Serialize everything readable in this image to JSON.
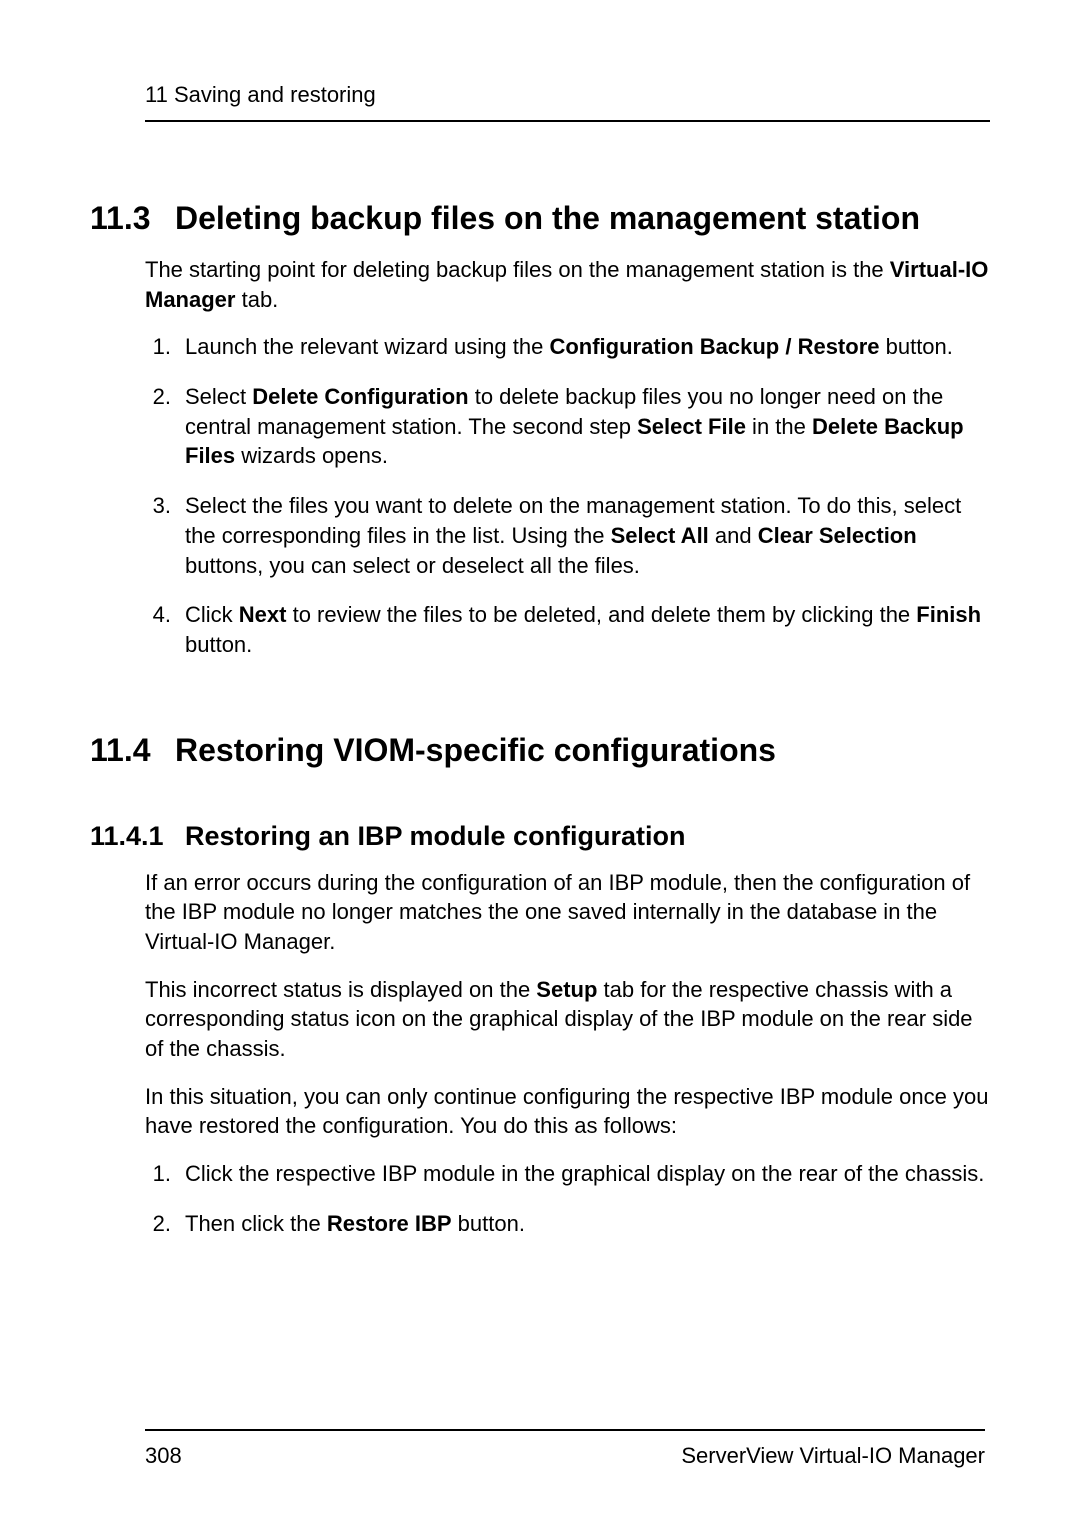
{
  "runningHead": "11 Saving and restoring",
  "section1": {
    "num": "11.3",
    "title": "Deleting backup files on the management station",
    "intro_pre": "The starting point for deleting backup files on the management station is the ",
    "intro_bold": "Virtual-IO Manager",
    "intro_post": " tab.",
    "steps": [
      {
        "n": "1.",
        "parts": [
          {
            "t": "Launch the relevant wizard using the "
          },
          {
            "t": "Configuration Backup / Restore",
            "b": true
          },
          {
            "t": " button."
          }
        ]
      },
      {
        "n": "2.",
        "parts": [
          {
            "t": "Select "
          },
          {
            "t": "Delete Configuration",
            "b": true
          },
          {
            "t": " to delete backup files you no longer need on the central management station. The second step "
          },
          {
            "t": "Select File",
            "b": true
          },
          {
            "t": " in the "
          },
          {
            "t": "Delete Backup Files",
            "b": true
          },
          {
            "t": " wizards opens."
          }
        ]
      },
      {
        "n": "3.",
        "parts": [
          {
            "t": "Select the files you want to delete on the management station. To do this, select the corresponding files in the list. Using the "
          },
          {
            "t": "Select All",
            "b": true
          },
          {
            "t": " and "
          },
          {
            "t": "Clear Selection",
            "b": true
          },
          {
            "t": " buttons, you can select or deselect all the files."
          }
        ]
      },
      {
        "n": "4.",
        "parts": [
          {
            "t": "Click "
          },
          {
            "t": "Next",
            "b": true
          },
          {
            "t": " to review the files to be deleted, and delete them by clicking the "
          },
          {
            "t": "Finish",
            "b": true
          },
          {
            "t": " button."
          }
        ]
      }
    ]
  },
  "section2": {
    "num": "11.4",
    "title": "Restoring VIOM-specific configurations",
    "sub": {
      "num": "11.4.1",
      "title": "Restoring an IBP module configuration",
      "p1": "If an error occurs during the configuration of an IBP module, then the configuration of the IBP module no longer matches the one saved internally in the database in the Virtual-IO Manager.",
      "p2_parts": [
        {
          "t": "This incorrect status is displayed on the "
        },
        {
          "t": "Setup",
          "b": true
        },
        {
          "t": " tab for the respective chassis with a corresponding status icon on the graphical display of the IBP module on the rear side of the chassis."
        }
      ],
      "p3": "In this situation, you can only continue configuring the respective IBP module once you have restored the configuration. You do this as follows:",
      "steps": [
        {
          "n": "1.",
          "parts": [
            {
              "t": "Click the respective IBP module in the graphical display on the rear of the chassis."
            }
          ]
        },
        {
          "n": "2.",
          "parts": [
            {
              "t": "Then click the "
            },
            {
              "t": "Restore IBP",
              "b": true
            },
            {
              "t": " button."
            }
          ]
        }
      ]
    }
  },
  "footer": {
    "pageNum": "308",
    "product": "ServerView Virtual-IO Manager"
  }
}
